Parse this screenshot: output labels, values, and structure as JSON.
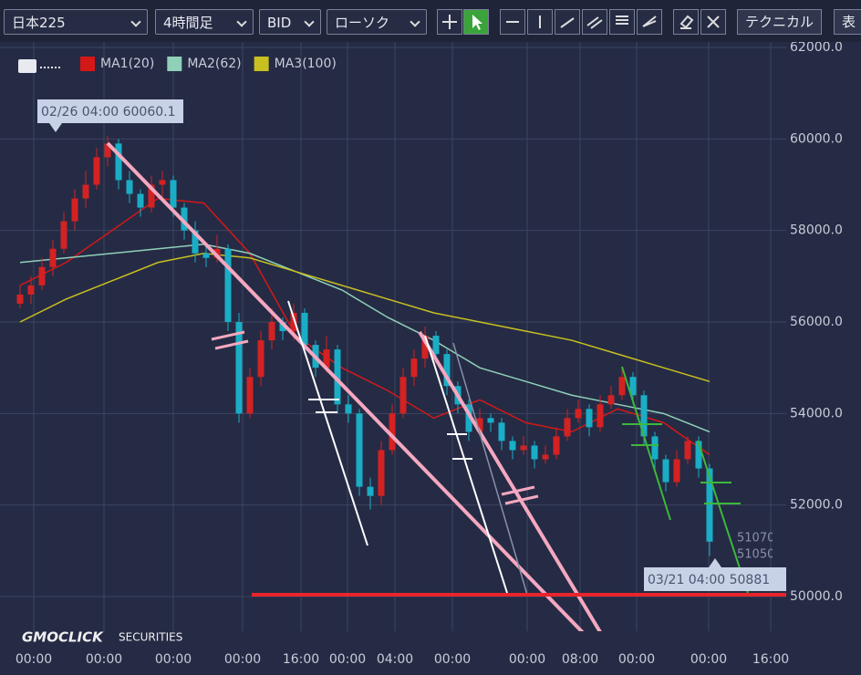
{
  "toolbar": {
    "symbol": "日本225",
    "timeframe": "4時間足",
    "price": "BID",
    "style": "ローソク",
    "technical": "テクニカル",
    "table": "表"
  },
  "watermark": {
    "brand": "GMOCLICK",
    "suffix": "SECURITIES"
  },
  "chart_data": {
    "type": "candlestick",
    "up_color": "#d42222",
    "down_color": "#1aaec6",
    "ylim": [
      49000,
      62000
    ],
    "yticks": [
      {
        "value": 50000,
        "label": "50000.0"
      },
      {
        "value": 52000,
        "label": "52000.0"
      },
      {
        "value": 54000,
        "label": "54000.0"
      },
      {
        "value": 56000,
        "label": "56000.0"
      },
      {
        "value": 58000,
        "label": "58000.0"
      },
      {
        "value": 60000,
        "label": "60000.0"
      },
      {
        "value": 62000,
        "label": "62000.0"
      }
    ],
    "xtick_labels": [
      "00:00",
      "00:00",
      "00:00",
      "00:00",
      "16:00",
      "00:00",
      "04:00",
      "00:00",
      "00:00",
      "08:00",
      "00:00",
      "00:00",
      "16:00"
    ],
    "grid": true,
    "candles": [
      [
        56400,
        56800,
        56300,
        56600
      ],
      [
        56600,
        57000,
        56400,
        56800
      ],
      [
        56800,
        57400,
        56700,
        57200
      ],
      [
        57200,
        57800,
        57000,
        57600
      ],
      [
        57600,
        58400,
        57500,
        58200
      ],
      [
        58200,
        58900,
        58000,
        58700
      ],
      [
        58700,
        59300,
        58500,
        59000
      ],
      [
        59000,
        59800,
        58900,
        59600
      ],
      [
        59600,
        60060,
        59400,
        59900
      ],
      [
        59900,
        60000,
        58900,
        59100
      ],
      [
        59100,
        59300,
        58600,
        58800
      ],
      [
        58800,
        58900,
        58300,
        58500
      ],
      [
        58500,
        59200,
        58400,
        59000
      ],
      [
        59000,
        59300,
        58700,
        59100
      ],
      [
        59100,
        59200,
        58300,
        58500
      ],
      [
        58500,
        58600,
        57800,
        58000
      ],
      [
        58000,
        58200,
        57300,
        57500
      ],
      [
        57500,
        57700,
        57200,
        57400
      ],
      [
        57400,
        57900,
        57300,
        57600
      ],
      [
        57600,
        57700,
        55800,
        56000
      ],
      [
        56000,
        56200,
        53800,
        54000
      ],
      [
        54000,
        55000,
        53900,
        54800
      ],
      [
        54800,
        55800,
        54600,
        55600
      ],
      [
        55600,
        56300,
        55400,
        56000
      ],
      [
        56000,
        56100,
        55600,
        55800
      ],
      [
        55800,
        56400,
        55600,
        56200
      ],
      [
        56200,
        56300,
        55300,
        55500
      ],
      [
        55500,
        55600,
        54800,
        55000
      ],
      [
        55000,
        55700,
        54900,
        55400
      ],
      [
        55400,
        55500,
        54000,
        54200
      ],
      [
        54200,
        54400,
        53800,
        54000
      ],
      [
        54000,
        54100,
        52200,
        52400
      ],
      [
        52400,
        52600,
        51900,
        52200
      ],
      [
        52200,
        53400,
        52000,
        53200
      ],
      [
        53200,
        54200,
        53100,
        54000
      ],
      [
        54000,
        55000,
        53900,
        54800
      ],
      [
        54800,
        55400,
        54600,
        55200
      ],
      [
        55200,
        55900,
        55000,
        55700
      ],
      [
        55700,
        55800,
        55100,
        55300
      ],
      [
        55300,
        55400,
        54400,
        54600
      ],
      [
        54600,
        54700,
        54000,
        54200
      ],
      [
        54200,
        54300,
        53400,
        53600
      ],
      [
        53600,
        54100,
        53500,
        53900
      ],
      [
        53900,
        54000,
        53600,
        53800
      ],
      [
        53800,
        53900,
        53200,
        53400
      ],
      [
        53400,
        53500,
        53000,
        53200
      ],
      [
        53200,
        53500,
        53100,
        53300
      ],
      [
        53300,
        53400,
        52800,
        53000
      ],
      [
        53000,
        53300,
        52900,
        53100
      ],
      [
        53100,
        53700,
        53000,
        53500
      ],
      [
        53500,
        54100,
        53400,
        53900
      ],
      [
        53900,
        54300,
        53800,
        54100
      ],
      [
        54100,
        54200,
        53500,
        53700
      ],
      [
        53700,
        54400,
        53600,
        54200
      ],
      [
        54200,
        54600,
        54100,
        54400
      ],
      [
        54400,
        55000,
        54300,
        54800
      ],
      [
        54800,
        54900,
        54200,
        54400
      ],
      [
        54400,
        54500,
        53300,
        53500
      ],
      [
        53500,
        53600,
        52800,
        53000
      ],
      [
        53000,
        53100,
        52300,
        52500
      ],
      [
        52500,
        53200,
        52400,
        53000
      ],
      [
        53000,
        53500,
        52900,
        53400
      ],
      [
        53400,
        53500,
        52600,
        52800
      ],
      [
        52800,
        52900,
        50881,
        51200
      ]
    ],
    "series": [
      {
        "name": "MA1(20)",
        "color": "#d41818",
        "values": [
          56800,
          57300,
          58000,
          58700,
          58600,
          57500,
          55700,
          55000,
          54500,
          53900,
          54300,
          53800,
          53600,
          54100,
          53800,
          53100
        ]
      },
      {
        "name": "MA2(62)",
        "color": "#8fd0b8",
        "values": [
          57300,
          57400,
          57500,
          57600,
          57700,
          57500,
          57100,
          56700,
          56100,
          55600,
          55000,
          54700,
          54400,
          54200,
          54000,
          53600
        ]
      },
      {
        "name": "MA3(100)",
        "color": "#c8c020",
        "values": [
          56000,
          56500,
          56900,
          57300,
          57500,
          57400,
          57100,
          56800,
          56500,
          56200,
          56000,
          55800,
          55600,
          55300,
          55000,
          54700
        ]
      }
    ],
    "annotations": [
      "02/26 04:00 60060.1",
      "03/21 04:00 50881",
      "51070",
      "51050"
    ]
  }
}
